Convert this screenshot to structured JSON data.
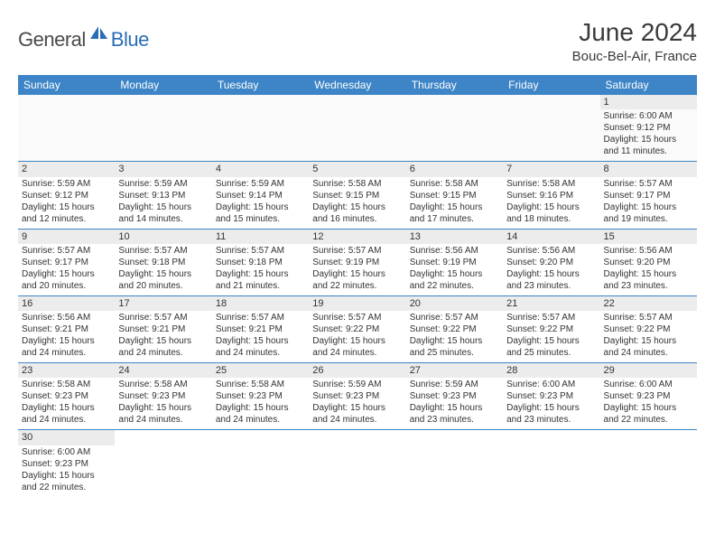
{
  "logo": {
    "text_dark": "General",
    "text_blue": "Blue"
  },
  "title": "June 2024",
  "location": "Bouc-Bel-Air, France",
  "colors": {
    "header_bg": "#3d85c6",
    "header_text": "#ffffff",
    "daynum_bg": "#ececec",
    "row_border": "#3d85c6",
    "logo_blue": "#2a6db5",
    "text": "#333333"
  },
  "weekdays": [
    "Sunday",
    "Monday",
    "Tuesday",
    "Wednesday",
    "Thursday",
    "Friday",
    "Saturday"
  ],
  "weeks": [
    [
      {
        "day": "",
        "lines": [
          "",
          "",
          "",
          ""
        ]
      },
      {
        "day": "",
        "lines": [
          "",
          "",
          "",
          ""
        ]
      },
      {
        "day": "",
        "lines": [
          "",
          "",
          "",
          ""
        ]
      },
      {
        "day": "",
        "lines": [
          "",
          "",
          "",
          ""
        ]
      },
      {
        "day": "",
        "lines": [
          "",
          "",
          "",
          ""
        ]
      },
      {
        "day": "",
        "lines": [
          "",
          "",
          "",
          ""
        ]
      },
      {
        "day": "1",
        "lines": [
          "Sunrise: 6:00 AM",
          "Sunset: 9:12 PM",
          "Daylight: 15 hours",
          "and 11 minutes."
        ]
      }
    ],
    [
      {
        "day": "2",
        "lines": [
          "Sunrise: 5:59 AM",
          "Sunset: 9:12 PM",
          "Daylight: 15 hours",
          "and 12 minutes."
        ]
      },
      {
        "day": "3",
        "lines": [
          "Sunrise: 5:59 AM",
          "Sunset: 9:13 PM",
          "Daylight: 15 hours",
          "and 14 minutes."
        ]
      },
      {
        "day": "4",
        "lines": [
          "Sunrise: 5:59 AM",
          "Sunset: 9:14 PM",
          "Daylight: 15 hours",
          "and 15 minutes."
        ]
      },
      {
        "day": "5",
        "lines": [
          "Sunrise: 5:58 AM",
          "Sunset: 9:15 PM",
          "Daylight: 15 hours",
          "and 16 minutes."
        ]
      },
      {
        "day": "6",
        "lines": [
          "Sunrise: 5:58 AM",
          "Sunset: 9:15 PM",
          "Daylight: 15 hours",
          "and 17 minutes."
        ]
      },
      {
        "day": "7",
        "lines": [
          "Sunrise: 5:58 AM",
          "Sunset: 9:16 PM",
          "Daylight: 15 hours",
          "and 18 minutes."
        ]
      },
      {
        "day": "8",
        "lines": [
          "Sunrise: 5:57 AM",
          "Sunset: 9:17 PM",
          "Daylight: 15 hours",
          "and 19 minutes."
        ]
      }
    ],
    [
      {
        "day": "9",
        "lines": [
          "Sunrise: 5:57 AM",
          "Sunset: 9:17 PM",
          "Daylight: 15 hours",
          "and 20 minutes."
        ]
      },
      {
        "day": "10",
        "lines": [
          "Sunrise: 5:57 AM",
          "Sunset: 9:18 PM",
          "Daylight: 15 hours",
          "and 20 minutes."
        ]
      },
      {
        "day": "11",
        "lines": [
          "Sunrise: 5:57 AM",
          "Sunset: 9:18 PM",
          "Daylight: 15 hours",
          "and 21 minutes."
        ]
      },
      {
        "day": "12",
        "lines": [
          "Sunrise: 5:57 AM",
          "Sunset: 9:19 PM",
          "Daylight: 15 hours",
          "and 22 minutes."
        ]
      },
      {
        "day": "13",
        "lines": [
          "Sunrise: 5:56 AM",
          "Sunset: 9:19 PM",
          "Daylight: 15 hours",
          "and 22 minutes."
        ]
      },
      {
        "day": "14",
        "lines": [
          "Sunrise: 5:56 AM",
          "Sunset: 9:20 PM",
          "Daylight: 15 hours",
          "and 23 minutes."
        ]
      },
      {
        "day": "15",
        "lines": [
          "Sunrise: 5:56 AM",
          "Sunset: 9:20 PM",
          "Daylight: 15 hours",
          "and 23 minutes."
        ]
      }
    ],
    [
      {
        "day": "16",
        "lines": [
          "Sunrise: 5:56 AM",
          "Sunset: 9:21 PM",
          "Daylight: 15 hours",
          "and 24 minutes."
        ]
      },
      {
        "day": "17",
        "lines": [
          "Sunrise: 5:57 AM",
          "Sunset: 9:21 PM",
          "Daylight: 15 hours",
          "and 24 minutes."
        ]
      },
      {
        "day": "18",
        "lines": [
          "Sunrise: 5:57 AM",
          "Sunset: 9:21 PM",
          "Daylight: 15 hours",
          "and 24 minutes."
        ]
      },
      {
        "day": "19",
        "lines": [
          "Sunrise: 5:57 AM",
          "Sunset: 9:22 PM",
          "Daylight: 15 hours",
          "and 24 minutes."
        ]
      },
      {
        "day": "20",
        "lines": [
          "Sunrise: 5:57 AM",
          "Sunset: 9:22 PM",
          "Daylight: 15 hours",
          "and 25 minutes."
        ]
      },
      {
        "day": "21",
        "lines": [
          "Sunrise: 5:57 AM",
          "Sunset: 9:22 PM",
          "Daylight: 15 hours",
          "and 25 minutes."
        ]
      },
      {
        "day": "22",
        "lines": [
          "Sunrise: 5:57 AM",
          "Sunset: 9:22 PM",
          "Daylight: 15 hours",
          "and 24 minutes."
        ]
      }
    ],
    [
      {
        "day": "23",
        "lines": [
          "Sunrise: 5:58 AM",
          "Sunset: 9:23 PM",
          "Daylight: 15 hours",
          "and 24 minutes."
        ]
      },
      {
        "day": "24",
        "lines": [
          "Sunrise: 5:58 AM",
          "Sunset: 9:23 PM",
          "Daylight: 15 hours",
          "and 24 minutes."
        ]
      },
      {
        "day": "25",
        "lines": [
          "Sunrise: 5:58 AM",
          "Sunset: 9:23 PM",
          "Daylight: 15 hours",
          "and 24 minutes."
        ]
      },
      {
        "day": "26",
        "lines": [
          "Sunrise: 5:59 AM",
          "Sunset: 9:23 PM",
          "Daylight: 15 hours",
          "and 24 minutes."
        ]
      },
      {
        "day": "27",
        "lines": [
          "Sunrise: 5:59 AM",
          "Sunset: 9:23 PM",
          "Daylight: 15 hours",
          "and 23 minutes."
        ]
      },
      {
        "day": "28",
        "lines": [
          "Sunrise: 6:00 AM",
          "Sunset: 9:23 PM",
          "Daylight: 15 hours",
          "and 23 minutes."
        ]
      },
      {
        "day": "29",
        "lines": [
          "Sunrise: 6:00 AM",
          "Sunset: 9:23 PM",
          "Daylight: 15 hours",
          "and 22 minutes."
        ]
      }
    ],
    [
      {
        "day": "30",
        "lines": [
          "Sunrise: 6:00 AM",
          "Sunset: 9:23 PM",
          "Daylight: 15 hours",
          "and 22 minutes."
        ]
      },
      {
        "day": "",
        "lines": [
          "",
          "",
          "",
          ""
        ]
      },
      {
        "day": "",
        "lines": [
          "",
          "",
          "",
          ""
        ]
      },
      {
        "day": "",
        "lines": [
          "",
          "",
          "",
          ""
        ]
      },
      {
        "day": "",
        "lines": [
          "",
          "",
          "",
          ""
        ]
      },
      {
        "day": "",
        "lines": [
          "",
          "",
          "",
          ""
        ]
      },
      {
        "day": "",
        "lines": [
          "",
          "",
          "",
          ""
        ]
      }
    ]
  ]
}
